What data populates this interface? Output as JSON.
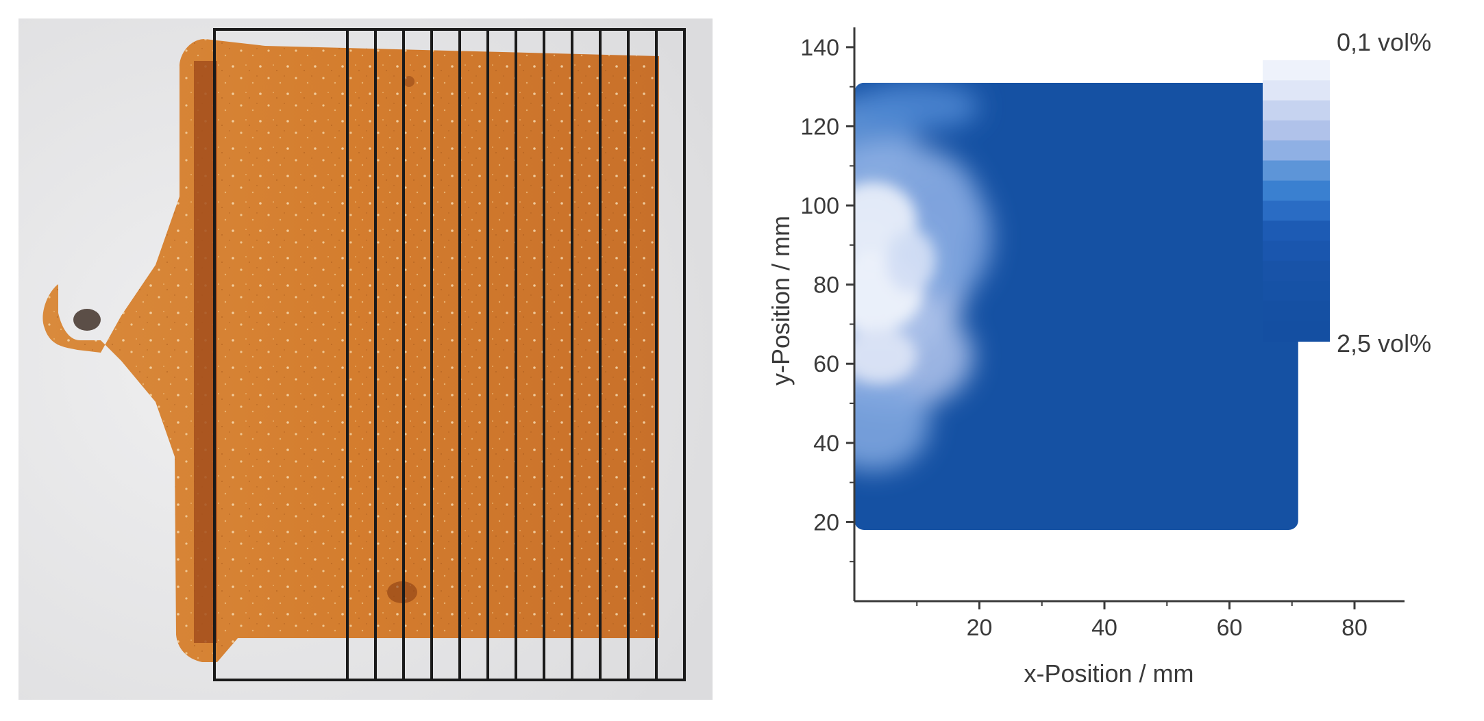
{
  "photo": {
    "description_icon": "ceramic-plate-photo",
    "frame_count": 12
  },
  "chart_data": {
    "type": "heatmap",
    "xlabel": "x-Position / mm",
    "ylabel": "y-Position / mm",
    "xlim": [
      0,
      88
    ],
    "ylim": [
      0,
      145
    ],
    "x_ticks": [
      20,
      40,
      60,
      80
    ],
    "y_ticks": [
      20,
      40,
      60,
      80,
      100,
      120,
      140
    ],
    "data_extent": {
      "x": [
        0,
        71
      ],
      "y": [
        18,
        131
      ]
    },
    "colorbar": {
      "min_label": "0,1 vol%",
      "max_label": "2,5 vol%",
      "min_value": 0.1,
      "max_value": 2.5,
      "colors": [
        "#eef2fb",
        "#dfe6f7",
        "#c6d3f0",
        "#b0c2ea",
        "#8fb0e4",
        "#5d95d8",
        "#3a80d0",
        "#2a6cc4",
        "#1d5bb4",
        "#1a56ae",
        "#1853a8",
        "#1652a6",
        "#1550a3",
        "#144fa2"
      ]
    },
    "colors": {
      "high": "#1551a3",
      "low": "#eef2fb"
    }
  }
}
